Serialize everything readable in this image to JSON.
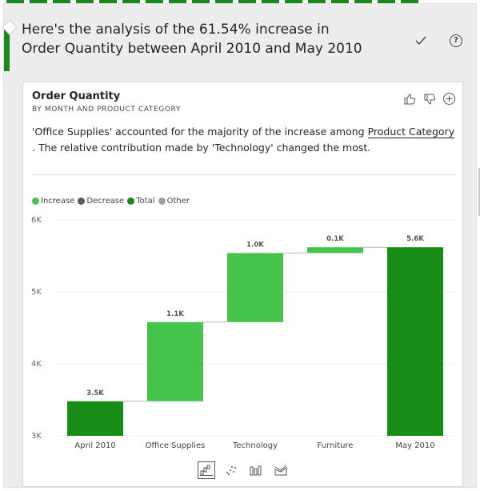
{
  "header": {
    "headline": "Here's the analysis of the 61.54% increase in Order Quantity between April 2010 and May 2010",
    "check_icon": "check-icon",
    "help_icon": "help-icon",
    "help_symbol": "?"
  },
  "card": {
    "title": "Order Quantity",
    "subtitle": "BY MONTH AND PRODUCT CATEGORY",
    "insight_part1": "'Office Supplies' accounted for the majority of the increase among ",
    "insight_link": "Product Category",
    "insight_part2": " . The relative contribution made by 'Technology' changed the most.",
    "actions": [
      "thumbs-up-icon",
      "thumbs-down-icon",
      "plus-circle-icon"
    ]
  },
  "legend": [
    {
      "label": "Increase",
      "color": "#46c34a"
    },
    {
      "label": "Decrease",
      "color": "#5a5a5a"
    },
    {
      "label": "Total",
      "color": "#178c17"
    },
    {
      "label": "Other",
      "color": "#a0a0a0"
    }
  ],
  "chart_data": {
    "type": "bar",
    "subtype": "waterfall",
    "categories": [
      "April 2010",
      "Office Supplies",
      "Technology",
      "Furniture",
      "May 2010"
    ],
    "bars": [
      {
        "category": "April 2010",
        "kind": "total",
        "start": 3000,
        "end": 3480,
        "label": "3.5K"
      },
      {
        "category": "Office Supplies",
        "kind": "increase",
        "start": 3480,
        "end": 4580,
        "label": "1.1K"
      },
      {
        "category": "Technology",
        "kind": "increase",
        "start": 4580,
        "end": 5540,
        "label": "1.0K"
      },
      {
        "category": "Furniture",
        "kind": "increase",
        "start": 5540,
        "end": 5620,
        "label": "0.1K"
      },
      {
        "category": "May 2010",
        "kind": "total",
        "start": 3000,
        "end": 5620,
        "label": "5.6K"
      }
    ],
    "y_ticks": [
      3000,
      4000,
      5000,
      6000
    ],
    "y_tick_labels": [
      "3K",
      "4K",
      "5K",
      "6K"
    ],
    "ylim": [
      3000,
      6000
    ],
    "legend_position": "top-left",
    "colors": {
      "increase": "#46c34a",
      "total": "#178c17",
      "decrease": "#5a5a5a",
      "other": "#a0a0a0"
    }
  },
  "view_icons": [
    "waterfall-view-icon",
    "scatter-view-icon",
    "column-view-icon",
    "ribbon-view-icon"
  ]
}
